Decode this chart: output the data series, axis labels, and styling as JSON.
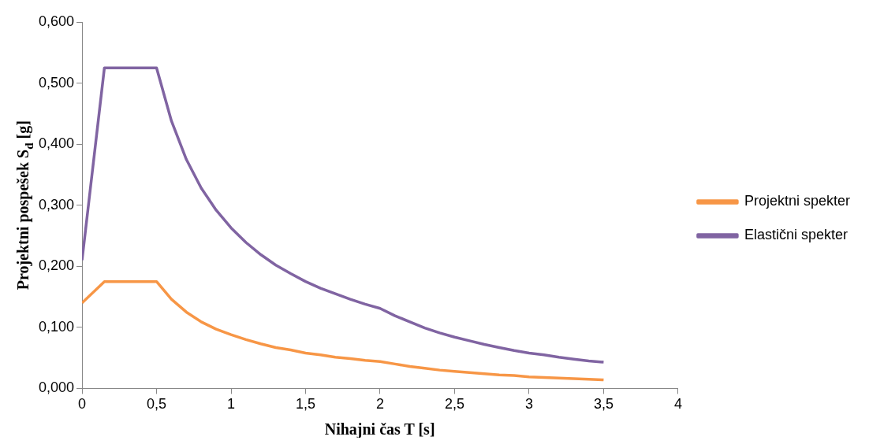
{
  "chart_data": {
    "type": "line",
    "xlabel": "Nihajni čas T [s]",
    "ylabel": "Projektni pospešek S$_{d}$ [g]",
    "xlim": [
      0,
      4
    ],
    "xticks": [
      0,
      {
        "value": 0.5,
        "label": "0,5"
      },
      1,
      {
        "value": 1.5,
        "label": "1,5"
      },
      2,
      {
        "value": 2.5,
        "label": "2,5"
      },
      3,
      {
        "value": 3.5,
        "label": "3,5"
      },
      4
    ],
    "ylim": [
      0,
      0.6
    ],
    "yticks": [
      {
        "value": 0,
        "label": "0,000"
      },
      {
        "value": 0.1,
        "label": "0,100"
      },
      {
        "value": 0.2,
        "label": "0,200"
      },
      {
        "value": 0.3,
        "label": "0,300"
      },
      {
        "value": 0.4,
        "label": "0,400"
      },
      {
        "value": 0.5,
        "label": "0,500"
      },
      {
        "value": 0.6,
        "label": "0,600"
      }
    ],
    "grid": false,
    "legend": "right",
    "marker": "none",
    "line_style": "solid",
    "x": [
      0,
      0.15,
      0.5,
      0.6,
      0.7,
      0.8,
      0.9,
      1.0,
      1.1,
      1.2,
      1.3,
      1.4,
      1.5,
      1.6,
      1.7,
      1.8,
      1.9,
      2.0,
      2.1,
      2.2,
      2.3,
      2.4,
      2.5,
      2.6,
      2.7,
      2.8,
      2.9,
      3.0,
      3.1,
      3.2,
      3.3,
      3.4,
      3.5
    ],
    "series": [
      {
        "name": "Projektni spekter",
        "color": "#f79646",
        "values": [
          0.14,
          0.175,
          0.175,
          0.146,
          0.125,
          0.109,
          0.097,
          0.088,
          0.08,
          0.073,
          0.067,
          0.063,
          0.058,
          0.055,
          0.051,
          0.049,
          0.046,
          0.044,
          0.04,
          0.036,
          0.033,
          0.03,
          0.028,
          0.026,
          0.024,
          0.022,
          0.021,
          0.019,
          0.018,
          0.017,
          0.016,
          0.015,
          0.014
        ]
      },
      {
        "name": "Elastični spekter",
        "color": "#8064a2",
        "values": [
          0.21,
          0.525,
          0.525,
          0.438,
          0.375,
          0.328,
          0.292,
          0.263,
          0.239,
          0.219,
          0.202,
          0.188,
          0.175,
          0.164,
          0.155,
          0.146,
          0.138,
          0.131,
          0.119,
          0.109,
          0.099,
          0.091,
          0.084,
          0.078,
          0.072,
          0.067,
          0.062,
          0.058,
          0.055,
          0.051,
          0.048,
          0.045,
          0.043
        ]
      }
    ]
  }
}
